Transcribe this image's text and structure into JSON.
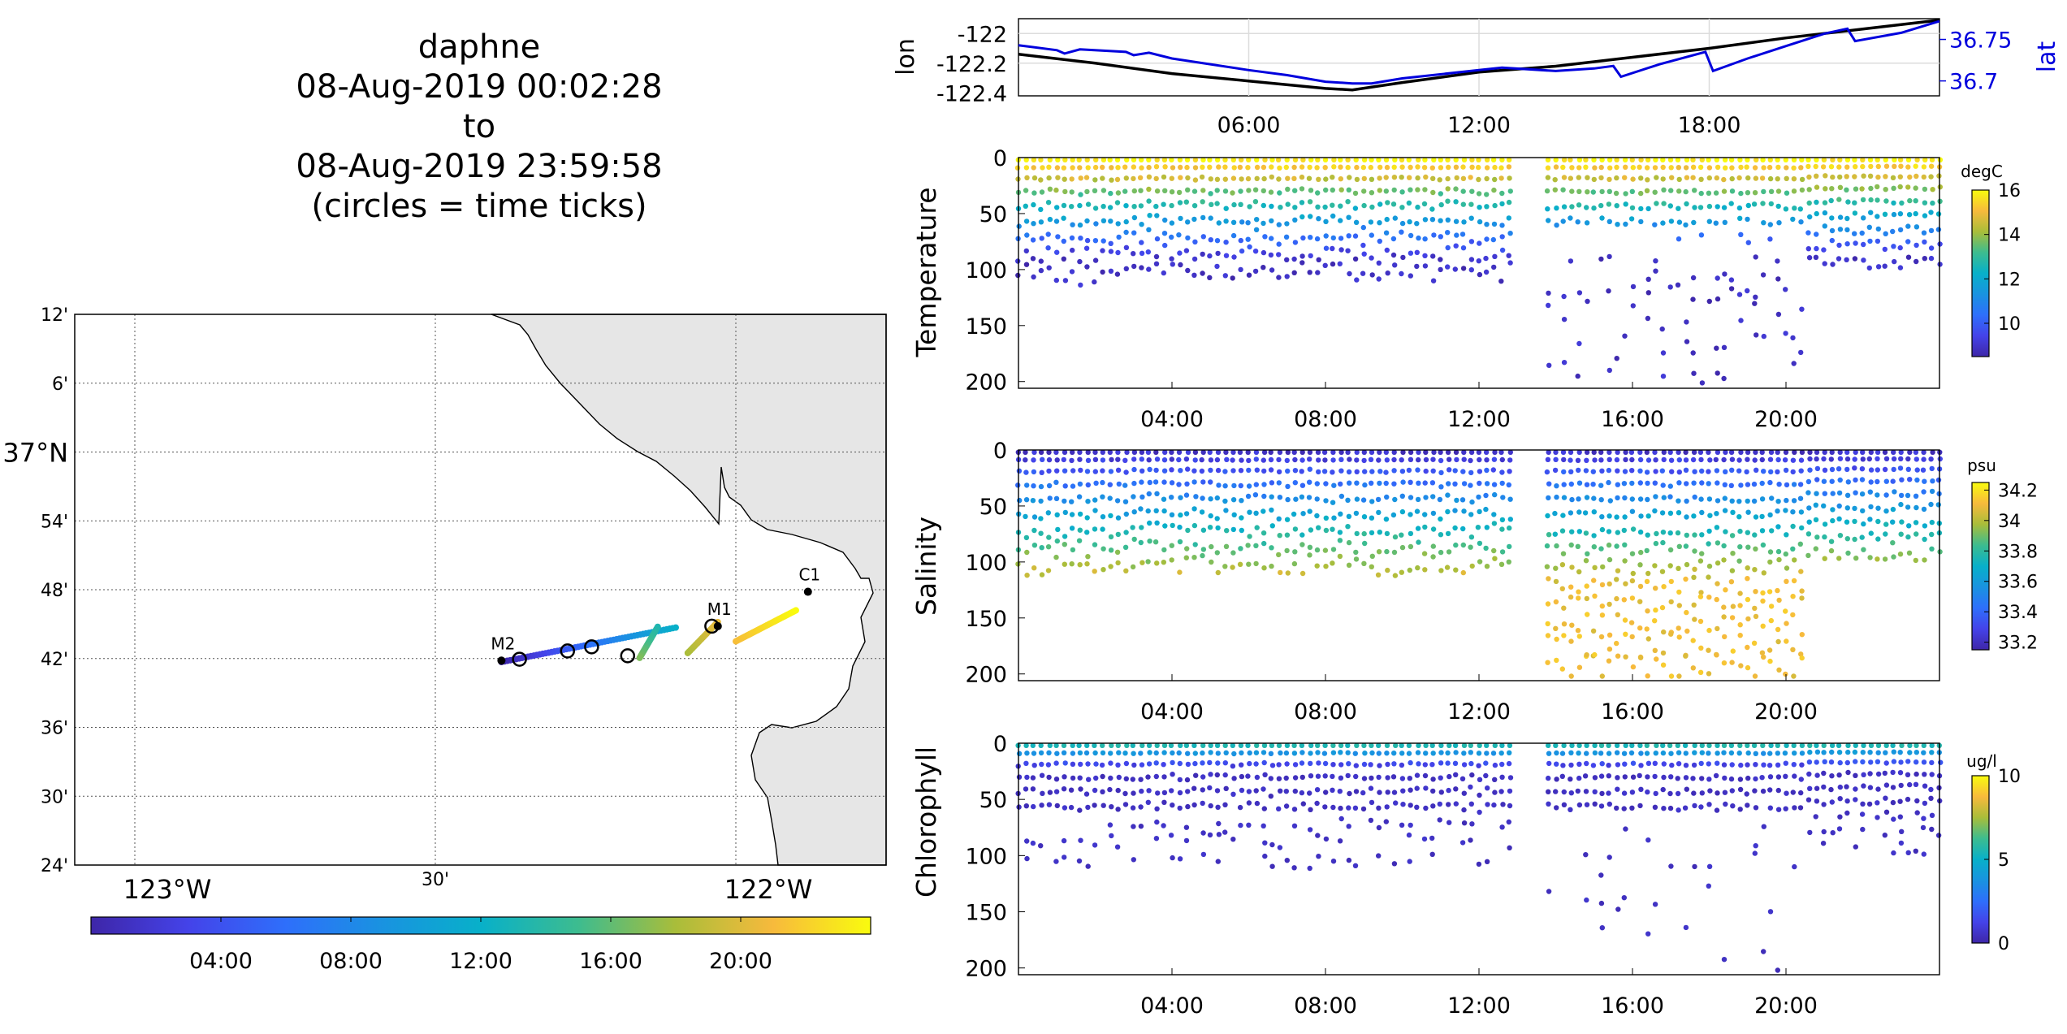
{
  "title": {
    "lines": [
      "daphne",
      "08-Aug-2019 00:02:28",
      "to",
      "08-Aug-2019 23:59:58",
      "(circles = time ticks)"
    ]
  },
  "map": {
    "lat_ticks": [
      "12'",
      "6'",
      "37°N",
      "54'",
      "48'",
      "42'",
      "36'",
      "30'",
      "24'"
    ],
    "lon_ticks": [
      "123°W",
      "30'",
      "122°W"
    ],
    "stations": [
      {
        "name": "M2",
        "lon": -122.39,
        "lat": 36.697
      },
      {
        "name": "M1",
        "lon": -122.03,
        "lat": 36.747
      },
      {
        "name": "C1",
        "lon": -121.88,
        "lat": 36.797
      }
    ],
    "colorbar_ticks": [
      "04:00",
      "08:00",
      "12:00",
      "16:00",
      "20:00"
    ],
    "land_color": "#e6e6e6"
  },
  "chart_data": [
    {
      "type": "line",
      "ylabel": "lon",
      "y2label": "lat",
      "x_ticks": [
        "06:00",
        "12:00",
        "18:00"
      ],
      "y_ticks": [
        "-122",
        "-122.2",
        "-122.4"
      ],
      "y2_ticks": [
        "36.75",
        "36.7"
      ],
      "series": [
        {
          "color": "#000000",
          "axis": "left",
          "points": [
            [
              0,
              -122.14
            ],
            [
              2,
              -122.2
            ],
            [
              4,
              -122.27
            ],
            [
              6,
              -122.32
            ],
            [
              8,
              -122.37
            ],
            [
              8.7,
              -122.38
            ],
            [
              10,
              -122.33
            ],
            [
              12,
              -122.26
            ],
            [
              14,
              -122.22
            ],
            [
              16,
              -122.16
            ],
            [
              18,
              -122.1
            ],
            [
              20,
              -122.03
            ],
            [
              22,
              -121.97
            ],
            [
              24,
              -121.91
            ]
          ]
        },
        {
          "color": "#0000dd",
          "axis": "right",
          "points": [
            [
              0,
              36.743
            ],
            [
              1,
              36.737
            ],
            [
              1.2,
              36.733
            ],
            [
              1.6,
              36.738
            ],
            [
              2.8,
              36.735
            ],
            [
              3,
              36.731
            ],
            [
              3.4,
              36.734
            ],
            [
              4,
              36.727
            ],
            [
              6,
              36.713
            ],
            [
              7,
              36.707
            ],
            [
              8,
              36.699
            ],
            [
              8.7,
              36.697
            ],
            [
              9.2,
              36.697
            ],
            [
              10,
              36.703
            ],
            [
              12,
              36.713
            ],
            [
              12.6,
              36.716
            ],
            [
              14,
              36.712
            ],
            [
              15,
              36.715
            ],
            [
              15.5,
              36.718
            ],
            [
              15.7,
              36.705
            ],
            [
              16.7,
              36.72
            ],
            [
              17.9,
              36.735
            ],
            [
              18.1,
              36.712
            ],
            [
              19,
              36.727
            ],
            [
              20,
              36.742
            ],
            [
              21,
              36.757
            ],
            [
              21.6,
              36.763
            ],
            [
              21.8,
              36.748
            ],
            [
              23,
              36.758
            ],
            [
              24,
              36.772
            ]
          ]
        }
      ]
    },
    {
      "type": "scatter",
      "ylabel": "Temperature",
      "units": "degC",
      "x_ticks": [
        "04:00",
        "08:00",
        "12:00",
        "16:00",
        "20:00"
      ],
      "y_ticks": [
        "0",
        "50",
        "100",
        "150",
        "200"
      ],
      "colorbar_ticks": [
        "16",
        "14",
        "12",
        "10"
      ],
      "clim": [
        8.5,
        16
      ]
    },
    {
      "type": "scatter",
      "ylabel": "Salinity",
      "units": "psu",
      "x_ticks": [
        "04:00",
        "08:00",
        "12:00",
        "16:00",
        "20:00"
      ],
      "y_ticks": [
        "0",
        "50",
        "100",
        "150",
        "200"
      ],
      "colorbar_ticks": [
        "34.2",
        "34",
        "33.8",
        "33.6",
        "33.4",
        "33.2"
      ],
      "clim": [
        33.15,
        34.25
      ]
    },
    {
      "type": "scatter",
      "ylabel": "Chlorophyll",
      "units": "ug/l",
      "x_ticks": [
        "04:00",
        "08:00",
        "12:00",
        "16:00",
        "20:00"
      ],
      "y_ticks": [
        "0",
        "50",
        "100",
        "150",
        "200"
      ],
      "colorbar_ticks": [
        "10",
        "5",
        "0"
      ],
      "clim": [
        0,
        10
      ]
    }
  ]
}
